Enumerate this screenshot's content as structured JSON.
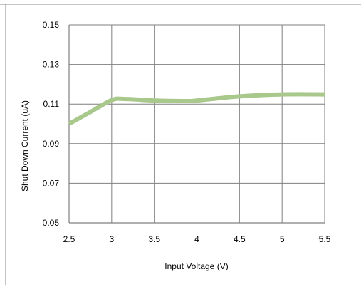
{
  "chart_data": {
    "type": "line",
    "title": "",
    "xlabel": "Input Voltage (V)",
    "ylabel": "Shut Down Current (uA)",
    "xlim": [
      2.5,
      5.5
    ],
    "ylim": [
      0.05,
      0.15
    ],
    "x_ticks": [
      "2.5",
      "3",
      "3.5",
      "4",
      "4.5",
      "5",
      "5.5"
    ],
    "y_ticks": [
      "0.15",
      "0.13",
      "0.11",
      "0.09",
      "0.07",
      "0.05"
    ],
    "grid": true,
    "series": [
      {
        "x": [
          2.5,
          2.75,
          3.0,
          3.15,
          3.5,
          3.9,
          4.0,
          4.5,
          5.0,
          5.5
        ],
        "y": [
          0.1,
          0.106,
          0.112,
          0.1126,
          0.1118,
          0.1115,
          0.1118,
          0.1139,
          0.1149,
          0.1149
        ]
      }
    ]
  },
  "colors": {
    "series_line": "#a9c88c",
    "grid": "#7f7f7f",
    "axis": "#7f7f7f",
    "frame": "#8a8a8a"
  }
}
